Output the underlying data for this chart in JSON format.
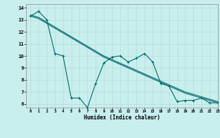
{
  "xlabel": "Humidex (Indice chaleur)",
  "background_color": "#c8eeee",
  "grid_color": "#b8dede",
  "line_color": "#006666",
  "xlim": [
    -0.5,
    23
  ],
  "ylim": [
    5.7,
    14.3
  ],
  "yticks": [
    6,
    7,
    8,
    9,
    10,
    11,
    12,
    13,
    14
  ],
  "xticks": [
    0,
    1,
    2,
    3,
    4,
    5,
    6,
    7,
    8,
    9,
    10,
    11,
    12,
    13,
    14,
    15,
    16,
    17,
    18,
    19,
    20,
    21,
    22,
    23
  ],
  "series_jagged": [
    13.3,
    13.7,
    13.0,
    10.2,
    10.0,
    6.5,
    6.5,
    5.7,
    7.7,
    9.4,
    9.9,
    10.0,
    9.5,
    9.8,
    10.2,
    9.5,
    7.7,
    7.5,
    6.2,
    6.3,
    6.3,
    6.5,
    6.1,
    6.1
  ],
  "series_line1": [
    13.3,
    13.1,
    12.7,
    12.3,
    11.9,
    11.5,
    11.1,
    10.7,
    10.3,
    9.9,
    9.6,
    9.3,
    9.0,
    8.7,
    8.4,
    8.1,
    7.8,
    7.5,
    7.2,
    6.9,
    6.7,
    6.5,
    6.3,
    6.1
  ],
  "series_line2": [
    13.4,
    13.2,
    12.8,
    12.4,
    12.0,
    11.6,
    11.2,
    10.8,
    10.4,
    10.0,
    9.7,
    9.4,
    9.1,
    8.8,
    8.5,
    8.2,
    7.9,
    7.6,
    7.3,
    7.0,
    6.8,
    6.6,
    6.4,
    6.2
  ]
}
